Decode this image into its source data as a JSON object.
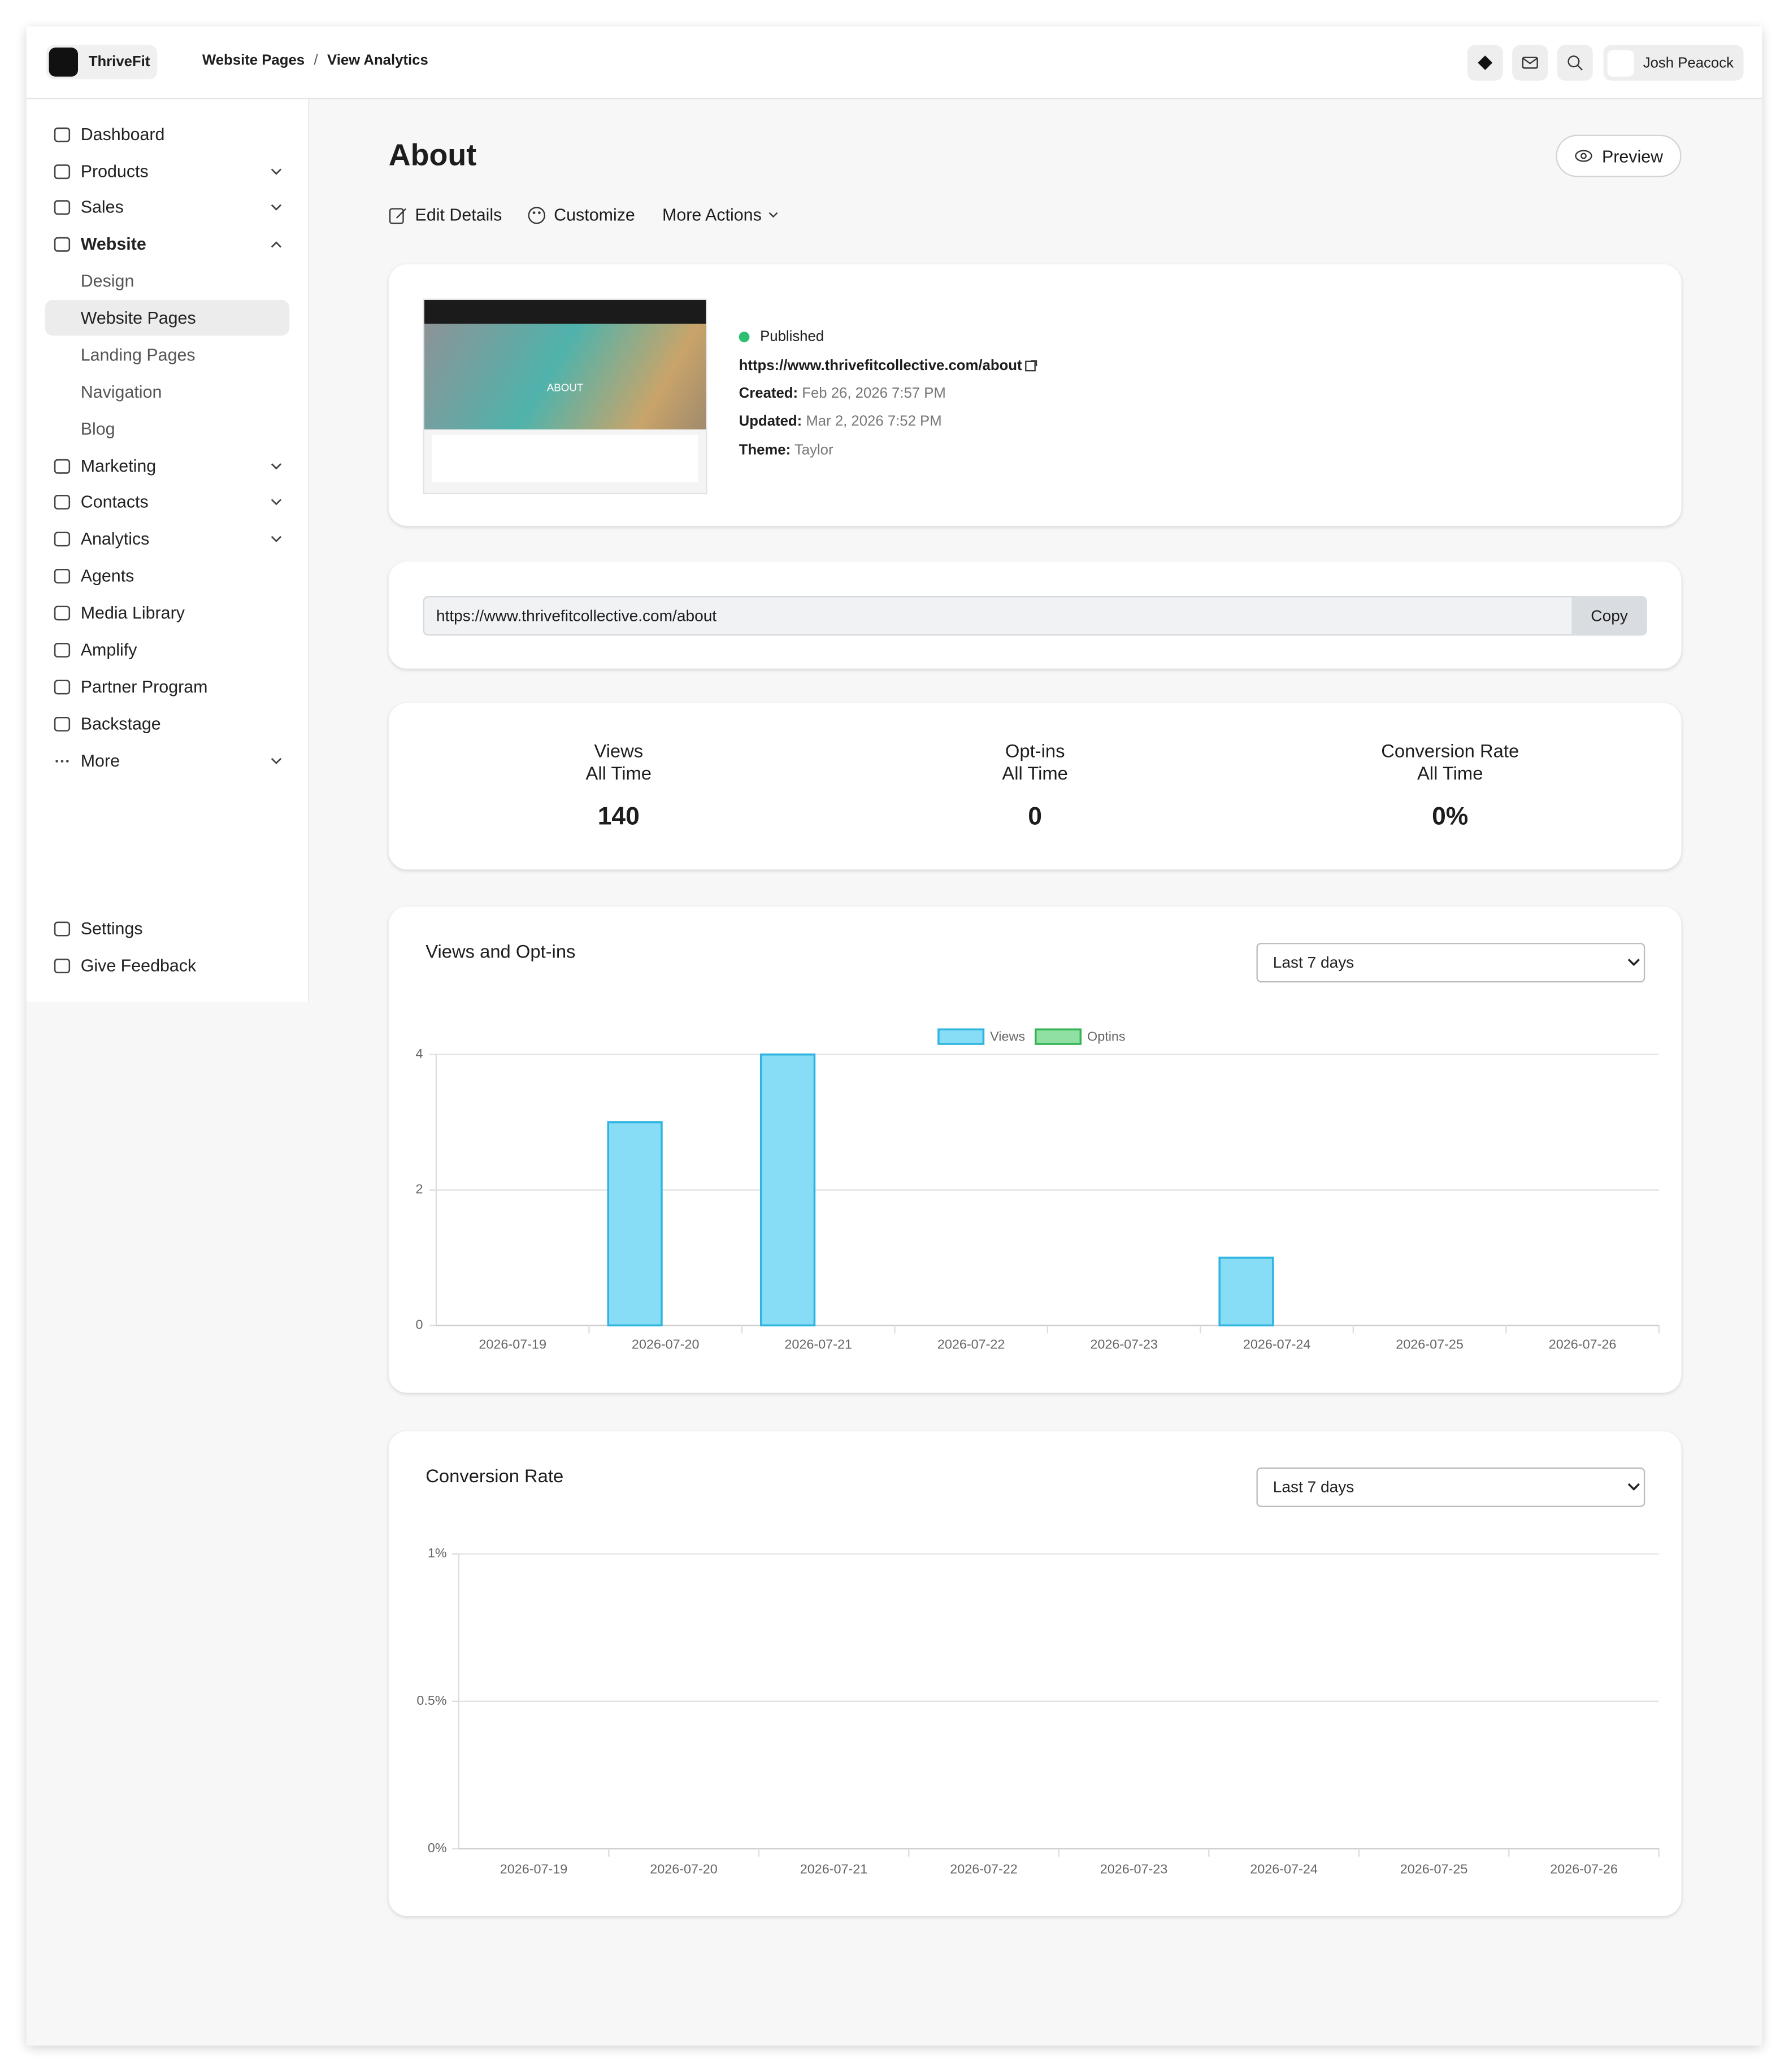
{
  "header": {
    "brand": "ThriveFit",
    "breadcrumb": [
      "Website Pages",
      "View Analytics"
    ],
    "user": "Josh Peacock"
  },
  "sidebar": {
    "main": [
      "Dashboard",
      "Products",
      "Sales",
      "Website"
    ],
    "website_pages": [
      "Design",
      "Website Pages",
      "Landing Pages",
      "Navigation",
      "Blog"
    ],
    "more": [
      "Marketing",
      "Contacts",
      "Analytics",
      "Agents",
      "Media Library",
      "Amplify",
      "Partner Program",
      "Backstage",
      "More"
    ],
    "bottom": [
      "Settings",
      "Give Feedback"
    ]
  },
  "page": {
    "title": "About",
    "preview": "Preview",
    "actions": [
      "Edit Details",
      "Customize",
      "More Actions"
    ]
  },
  "details": {
    "thumbnail_heading": "ABOUT",
    "status": "Published",
    "url": "https://www.thrivefitcollective.com/about",
    "created": {
      "label": "Created:",
      "value": "Feb 26, 2026 7:57 PM"
    },
    "updated": {
      "label": "Updated:",
      "value": "Mar 2, 2026 7:52 PM"
    },
    "theme": {
      "label": "Theme:",
      "value": "Taylor"
    }
  },
  "share": {
    "url": "https://www.thrivefitcollective.com/about",
    "button": "Copy"
  },
  "stats": [
    {
      "label": "Views",
      "period": "All Time",
      "value": 140
    },
    {
      "label": "Opt-ins",
      "period": "All Time",
      "value": 0
    },
    {
      "label": "Conversion Rate",
      "period": "All Time",
      "value": 0,
      "value_label": "0%"
    }
  ],
  "chart_data": [
    {
      "type": "bar",
      "title": "Views and Opt-ins",
      "filter": "Last 7 days",
      "categories": [
        "2026-07-19",
        "2026-07-20",
        "2026-07-21",
        "2026-07-22",
        "2026-07-23",
        "2026-07-24",
        "2026-07-25",
        "2026-07-26"
      ],
      "series": [
        {
          "name": "Views",
          "color": "#87dcf6",
          "border": "#2fb4e0",
          "values": [
            0,
            3,
            4,
            0,
            0,
            1,
            0,
            0
          ]
        },
        {
          "name": "Optins",
          "color": "#8fe0a2",
          "border": "#35b455",
          "values": [
            0,
            0,
            0,
            0,
            0,
            0,
            0,
            0
          ]
        }
      ],
      "ylim": [
        0,
        4
      ],
      "yticks": [
        0,
        2,
        4
      ],
      "grid": true
    },
    {
      "type": "line",
      "title": "Conversion Rate",
      "filter": "Last 7 days",
      "categories": [
        "2026-07-19",
        "2026-07-20",
        "2026-07-21",
        "2026-07-22",
        "2026-07-23",
        "2026-07-24",
        "2026-07-25",
        "2026-07-26"
      ],
      "ylim": [
        0,
        1
      ],
      "yticks": [
        {
          "value": 0,
          "label": "0%"
        },
        {
          "value": 0.5,
          "label": "0.5%"
        },
        {
          "value": 1,
          "label": "1%"
        }
      ],
      "grid": true
    }
  ]
}
